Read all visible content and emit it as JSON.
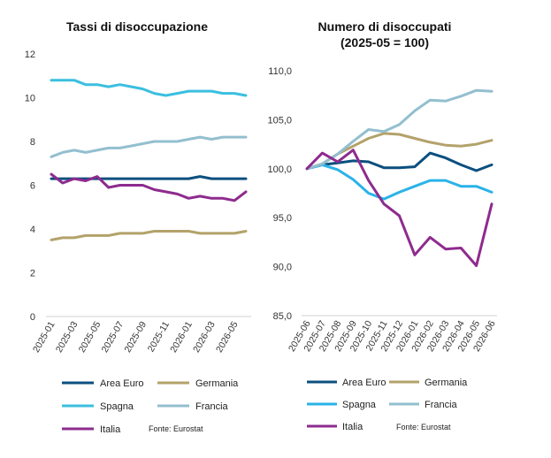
{
  "chart_data": [
    {
      "type": "line",
      "title": "Tassi di disoccupazione",
      "categories": [
        "2025-01",
        "2025-02",
        "2025-03",
        "2025-04",
        "2025-05",
        "2025-06",
        "2025-07",
        "2025-08",
        "2025-09",
        "2025-10",
        "2025-11",
        "2025-12",
        "2026-01",
        "2026-02",
        "2026-03",
        "2026-04",
        "2026-05",
        "2026-06"
      ],
      "tick_labels": [
        "2025-01",
        "2025-03",
        "2025-05",
        "2025-07",
        "2025-09",
        "2025-11",
        "2026-01",
        "2026-03",
        "2026-05"
      ],
      "ylim": [
        0,
        12
      ],
      "yticks": [
        "0",
        "2",
        "4",
        "6",
        "8",
        "10",
        "12"
      ],
      "grid": false,
      "series": [
        {
          "name": "Area Euro",
          "color": "#0b4f7f",
          "values": [
            6.3,
            6.3,
            6.3,
            6.3,
            6.3,
            6.3,
            6.3,
            6.3,
            6.3,
            6.3,
            6.3,
            6.3,
            6.3,
            6.4,
            6.3,
            6.3,
            6.3,
            6.3
          ]
        },
        {
          "name": "Germania",
          "color": "#b3a26a",
          "values": [
            3.5,
            3.6,
            3.6,
            3.7,
            3.7,
            3.7,
            3.8,
            3.8,
            3.8,
            3.9,
            3.9,
            3.9,
            3.9,
            3.8,
            3.8,
            3.8,
            3.8,
            3.9
          ]
        },
        {
          "name": "Spagna",
          "color": "#3bbfe0",
          "values": [
            10.8,
            10.8,
            10.8,
            10.6,
            10.6,
            10.5,
            10.6,
            10.5,
            10.4,
            10.2,
            10.1,
            10.2,
            10.3,
            10.3,
            10.3,
            10.2,
            10.2,
            10.1
          ]
        },
        {
          "name": "Francia",
          "color": "#93bfcf",
          "values": [
            7.3,
            7.5,
            7.6,
            7.5,
            7.6,
            7.7,
            7.7,
            7.8,
            7.9,
            8.0,
            8.0,
            8.0,
            8.1,
            8.2,
            8.1,
            8.2,
            8.2,
            8.2
          ]
        },
        {
          "name": "Italia",
          "color": "#8e2b8e",
          "values": [
            6.5,
            6.1,
            6.3,
            6.2,
            6.4,
            5.9,
            6.0,
            6.0,
            6.0,
            5.8,
            5.7,
            5.6,
            5.4,
            5.5,
            5.4,
            5.4,
            5.3,
            5.7
          ]
        }
      ],
      "source": "Fonte: Eurostat",
      "legend_position": "bottom"
    },
    {
      "type": "line",
      "title": "Numero di disoccupati",
      "subtitle": "(2025-05 = 100)",
      "categories": [
        "2025-06",
        "2025-07",
        "2025-08",
        "2025-09",
        "2025-10",
        "2025-11",
        "2025-12",
        "2026-01",
        "2026-02",
        "2026-03",
        "2026-04",
        "2026-05",
        "2026-06"
      ],
      "ylim": [
        85,
        110
      ],
      "yticks": [
        "85,0",
        "90,0",
        "95,0",
        "100,0",
        "105,0",
        "110,0"
      ],
      "grid": false,
      "series": [
        {
          "name": "Area Euro",
          "color": "#0b4f7f",
          "values": [
            100.0,
            100.4,
            100.6,
            100.8,
            100.7,
            100.1,
            100.1,
            100.2,
            101.6,
            101.1,
            100.4,
            99.8,
            100.4
          ]
        },
        {
          "name": "Germania",
          "color": "#b3a26a",
          "values": [
            100.0,
            100.5,
            101.5,
            102.3,
            103.1,
            103.6,
            103.5,
            103.1,
            102.7,
            102.4,
            102.3,
            102.5,
            102.9
          ]
        },
        {
          "name": "Spagna",
          "color": "#2ab3e8",
          "values": [
            100.0,
            100.4,
            99.9,
            98.9,
            97.5,
            96.9,
            97.6,
            98.2,
            98.8,
            98.8,
            98.2,
            98.2,
            97.6
          ]
        },
        {
          "name": "Francia",
          "color": "#93bfcf",
          "values": [
            100.0,
            100.5,
            101.5,
            102.8,
            104.0,
            103.8,
            104.5,
            105.9,
            107.0,
            106.9,
            107.4,
            108.0,
            107.9
          ]
        },
        {
          "name": "Italia",
          "color": "#8e2b8e",
          "values": [
            100.0,
            101.6,
            100.7,
            101.9,
            98.8,
            96.4,
            95.2,
            91.2,
            93.0,
            91.8,
            91.9,
            90.1,
            96.4
          ]
        }
      ],
      "source": "Fonte: Eurostat",
      "legend_position": "bottom"
    }
  ]
}
